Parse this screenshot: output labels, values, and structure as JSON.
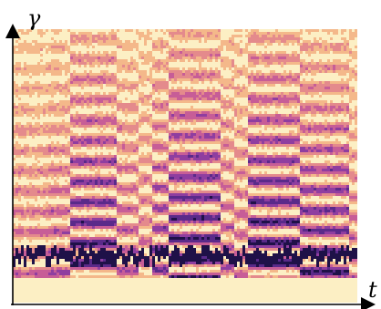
{
  "figure": {
    "axes": {
      "y_label": "γ",
      "x_label": "t"
    },
    "heatmap": {
      "description_colormap": [
        "#fff8d8",
        "#fce6a6",
        "#f4b88a",
        "#e48a8c",
        "#c75d97",
        "#8f3ea0",
        "#5a2a8a",
        "#1f1148"
      ],
      "baseline_color": "#fcefc4"
    },
    "colors": {
      "axis": "#000000",
      "background": "#ffffff"
    }
  }
}
